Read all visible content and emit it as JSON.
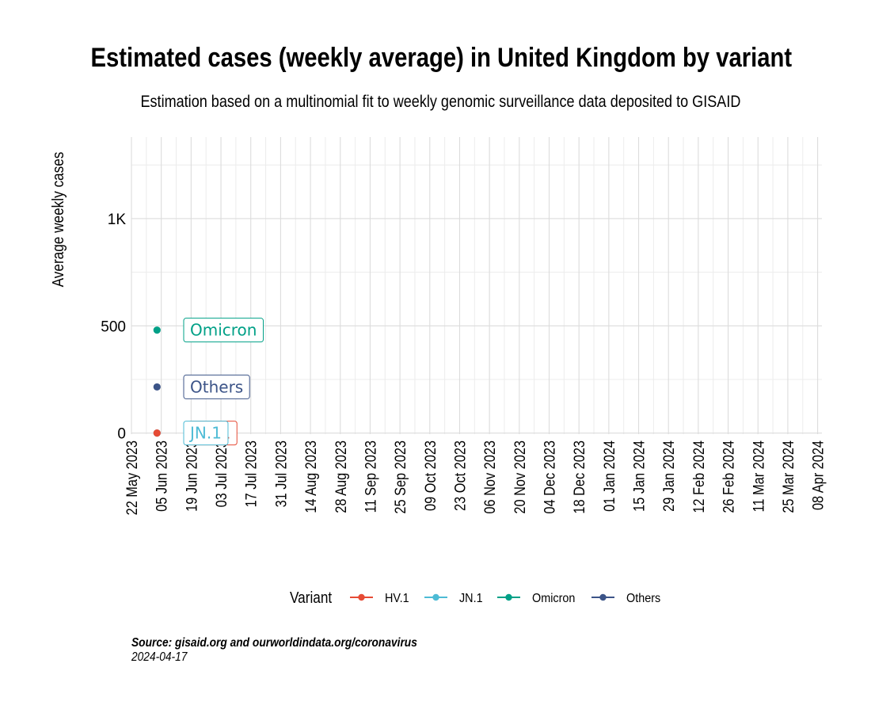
{
  "chart_data": {
    "type": "line",
    "title": "Estimated cases (weekly average) in United Kingdom by variant",
    "subtitle": "Estimation based on a multinomial fit to weekly genomic surveillance data deposited to GISAID",
    "xlabel": "",
    "ylabel": "Average weekly cases",
    "ylim": [
      -5,
      1380
    ],
    "y_ticks": [
      0,
      500,
      1000
    ],
    "y_tick_labels": [
      "0",
      "500",
      "1K"
    ],
    "y_minor_ticks": [
      250,
      750,
      1250
    ],
    "x_start": "2023-05-22",
    "x_end": "2024-04-10",
    "x_ticks": [
      "2023-05-22",
      "2023-06-05",
      "2023-06-19",
      "2023-07-03",
      "2023-07-17",
      "2023-07-31",
      "2023-08-14",
      "2023-08-28",
      "2023-09-11",
      "2023-09-25",
      "2023-10-09",
      "2023-10-23",
      "2023-11-06",
      "2023-11-20",
      "2023-12-04",
      "2023-12-18",
      "2024-01-01",
      "2024-01-15",
      "2024-01-29",
      "2024-02-12",
      "2024-02-26",
      "2024-03-11",
      "2024-03-25",
      "2024-04-08"
    ],
    "x_tick_labels": [
      "22 May 2023",
      "05 Jun 2023",
      "19 Jun 2023",
      "03 Jul 2023",
      "17 Jul 2023",
      "31 Jul 2023",
      "14 Aug 2023",
      "28 Aug 2023",
      "11 Sep 2023",
      "25 Sep 2023",
      "09 Oct 2023",
      "23 Oct 2023",
      "06 Nov 2023",
      "20 Nov 2023",
      "04 Dec 2023",
      "18 Dec 2023",
      "01 Jan 2024",
      "15 Jan 2024",
      "29 Jan 2024",
      "12 Feb 2024",
      "26 Feb 2024",
      "11 Mar 2024",
      "25 Mar 2024",
      "08 Apr 2024"
    ],
    "legend_title": "Variant",
    "legend_position": "bottom",
    "series": [
      {
        "name": "HV.1",
        "color": "#e64b35",
        "points": [
          {
            "x": "2023-06-03",
            "y": 0
          }
        ],
        "label": "HV.1"
      },
      {
        "name": "JN.1",
        "color": "#4dbbd5",
        "points": [
          {
            "x": "2023-06-03",
            "y": 0
          }
        ],
        "label": "JN.1"
      },
      {
        "name": "Omicron",
        "color": "#00a087",
        "points": [
          {
            "x": "2023-06-03",
            "y": 480
          }
        ],
        "label": "Omicron"
      },
      {
        "name": "Others",
        "color": "#3c5488",
        "points": [
          {
            "x": "2023-06-03",
            "y": 215
          }
        ],
        "label": "Others"
      }
    ]
  },
  "footer": {
    "source": "Source: gisaid.org and ourworldindata.org/coronavirus",
    "date": "2024-04-17"
  }
}
